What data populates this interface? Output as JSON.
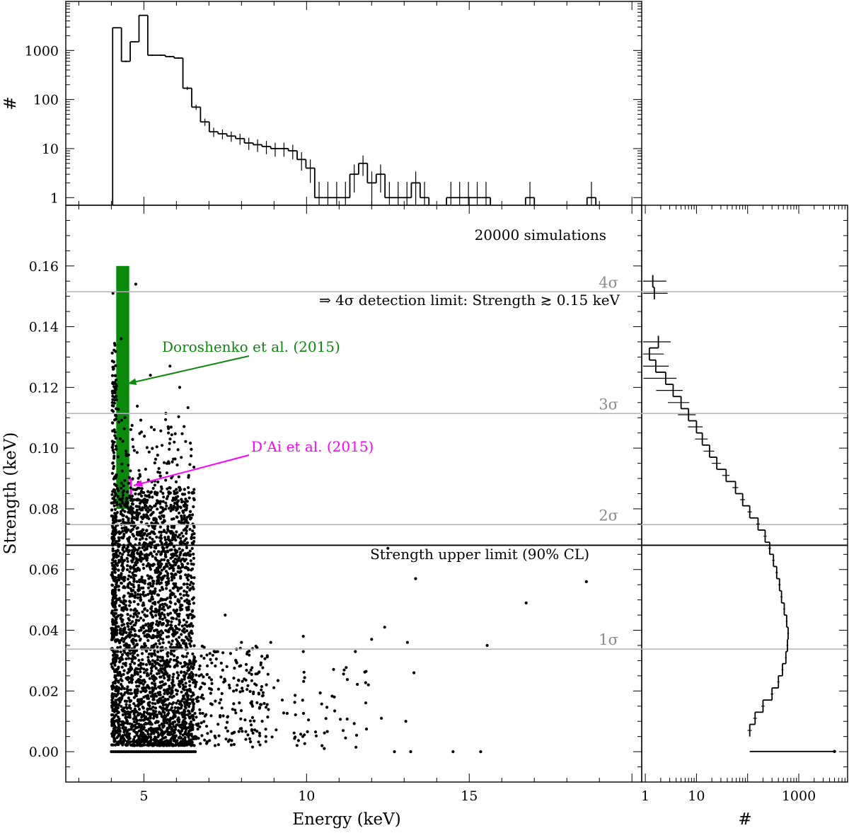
{
  "chart_data": [
    {
      "id": "top-histogram",
      "type": "bar",
      "panel": "top",
      "ylabel": "#",
      "yscale": "log",
      "xlim": [
        2.6,
        20.3
      ],
      "ylim": [
        0.7,
        10000
      ],
      "yticks": [
        1,
        10,
        100,
        1000
      ],
      "ytick_labels": [
        "1",
        "10",
        "100",
        "1000"
      ],
      "bin_width": 0.27,
      "bins_start": [
        4.04,
        4.31,
        4.58,
        4.85,
        5.12,
        5.39,
        5.66,
        5.93,
        6.2,
        6.47,
        6.74,
        7.01,
        7.28,
        7.55,
        7.82,
        8.09,
        8.36,
        8.63,
        8.9,
        9.17,
        9.44,
        9.71,
        9.98,
        10.25,
        10.52,
        10.79,
        11.06,
        11.33,
        11.6,
        11.87,
        12.14,
        12.41,
        12.68,
        12.95,
        13.22,
        13.49,
        14.3,
        14.57,
        14.84,
        15.11,
        15.38,
        16.73,
        18.62
      ],
      "counts": [
        2900,
        600,
        1500,
        5200,
        800,
        800,
        750,
        700,
        170,
        70,
        35,
        22,
        20,
        18,
        16,
        13,
        12,
        11,
        10,
        10,
        9,
        6,
        4,
        1,
        1,
        1,
        1,
        3,
        5,
        2,
        3,
        1,
        1,
        1,
        2,
        1,
        1,
        1,
        1,
        1,
        1,
        1,
        1
      ]
    },
    {
      "id": "scatter",
      "type": "scatter",
      "panel": "main",
      "xlabel": "Energy (keV)",
      "ylabel": "Strength (keV)",
      "xlim": [
        2.6,
        20.3
      ],
      "ylim": [
        -0.01,
        0.18
      ],
      "xticks": [
        5,
        10,
        15
      ],
      "xtick_labels": [
        "5",
        "10",
        "15"
      ],
      "yticks": [
        0.0,
        0.02,
        0.04,
        0.06,
        0.08,
        0.1,
        0.12,
        0.14,
        0.16
      ],
      "ytick_labels": [
        "0.00",
        "0.02",
        "0.04",
        "0.06",
        "0.08",
        "0.10",
        "0.12",
        "0.14",
        "0.16"
      ],
      "n_simulations": 20000,
      "outlier_points": [
        {
          "x": 4.75,
          "y": 0.154
        },
        {
          "x": 4.05,
          "y": 0.151
        },
        {
          "x": 4.3,
          "y": 0.136
        },
        {
          "x": 5.2,
          "y": 0.124
        },
        {
          "x": 5.8,
          "y": 0.127
        },
        {
          "x": 6.1,
          "y": 0.12
        },
        {
          "x": 12.5,
          "y": 0.067
        },
        {
          "x": 13.35,
          "y": 0.057
        },
        {
          "x": 16.75,
          "y": 0.049
        },
        {
          "x": 18.6,
          "y": 0.056
        },
        {
          "x": 15.55,
          "y": 0.035
        },
        {
          "x": 12.4,
          "y": 0.041
        },
        {
          "x": 13.1,
          "y": 0.036
        },
        {
          "x": 12.0,
          "y": 0.037
        },
        {
          "x": 13.3,
          "y": 0.026
        },
        {
          "x": 11.9,
          "y": 0.022
        },
        {
          "x": 12.3,
          "y": 0.011
        },
        {
          "x": 13.05,
          "y": 0.01
        },
        {
          "x": 13.2,
          "y": 0.0
        },
        {
          "x": 14.5,
          "y": 0.0
        },
        {
          "x": 15.35,
          "y": 0.0
        },
        {
          "x": 12.7,
          "y": 0.0
        },
        {
          "x": 9.9,
          "y": 0.038
        },
        {
          "x": 9.9,
          "y": 0.033
        },
        {
          "x": 7.5,
          "y": 0.045
        },
        {
          "x": 8.0,
          "y": 0.036
        },
        {
          "x": 8.9,
          "y": 0.036
        },
        {
          "x": 11.5,
          "y": 0.033
        }
      ],
      "sigma_levels": [
        {
          "label": "1σ",
          "strength": 0.0338
        },
        {
          "label": "2σ",
          "strength": 0.0748
        },
        {
          "label": "3σ",
          "strength": 0.1114
        },
        {
          "label": "4σ",
          "strength": 0.1515
        }
      ],
      "upper_limit": {
        "strength": 0.068,
        "label": "Strength upper limit (90% CL)"
      },
      "detection_limit_text": "⇒  4σ detection limit: Strength ≳ 0.15 keV",
      "n_sim_label": "20000 simulations",
      "literature": [
        {
          "label": "Doroshenko et al. (2015)",
          "color": "#0a8a0a",
          "energy_range": [
            4.15,
            4.55
          ],
          "strength_range": [
            0.08,
            0.16
          ]
        },
        {
          "label": "D’Ai et al. (2015)",
          "color": "#ff00ff",
          "energy": 4.6,
          "strength_range": [
            0.084,
            0.089
          ]
        }
      ]
    },
    {
      "id": "right-histogram",
      "type": "bar",
      "panel": "right",
      "orientation": "horizontal",
      "xlabel": "#",
      "xscale": "log",
      "xlim": [
        0.85,
        9000
      ],
      "xticks": [
        1,
        10,
        1000
      ],
      "xtick_labels": [
        "1",
        "10",
        "1000"
      ],
      "strength_bins": [
        0.003,
        0.007,
        0.011,
        0.015,
        0.019,
        0.023,
        0.027,
        0.031,
        0.035,
        0.039,
        0.043,
        0.047,
        0.051,
        0.055,
        0.059,
        0.063,
        0.067,
        0.071,
        0.075,
        0.079,
        0.083,
        0.087,
        0.091,
        0.095,
        0.099,
        0.103,
        0.107,
        0.111,
        0.115,
        0.119,
        0.123,
        0.127,
        0.131,
        0.135,
        0.151,
        0.155
      ],
      "counts": [
        5000,
        110,
        140,
        200,
        300,
        400,
        480,
        560,
        600,
        620,
        580,
        520,
        460,
        420,
        370,
        320,
        270,
        220,
        160,
        110,
        80,
        58,
        38,
        25,
        18,
        13,
        10,
        7,
        5,
        3.5,
        2.5,
        1.6,
        1.2,
        1.8,
        1.5,
        1.4
      ]
    }
  ]
}
